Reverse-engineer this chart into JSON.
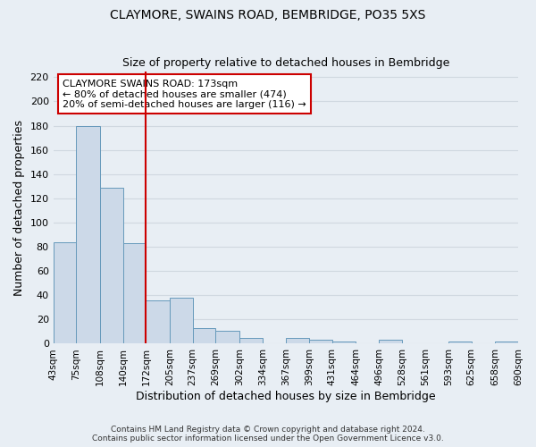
{
  "title": "CLAYMORE, SWAINS ROAD, BEMBRIDGE, PO35 5XS",
  "subtitle": "Size of property relative to detached houses in Bembridge",
  "xlabel": "Distribution of detached houses by size in Bembridge",
  "ylabel": "Number of detached properties",
  "bar_edges": [
    43,
    75,
    108,
    140,
    172,
    205,
    237,
    269,
    302,
    334,
    367,
    399,
    431,
    464,
    496,
    528,
    561,
    593,
    625,
    658,
    690
  ],
  "bar_heights": [
    84,
    180,
    129,
    83,
    36,
    38,
    13,
    11,
    5,
    0,
    5,
    3,
    2,
    0,
    3,
    0,
    0,
    2,
    0,
    2
  ],
  "bar_color": "#ccd9e8",
  "bar_edge_color": "#6699bb",
  "vline_x": 172,
  "vline_color": "#cc0000",
  "ylim": [
    0,
    225
  ],
  "yticks": [
    0,
    20,
    40,
    60,
    80,
    100,
    120,
    140,
    160,
    180,
    200,
    220
  ],
  "tick_labels": [
    "43sqm",
    "75sqm",
    "108sqm",
    "140sqm",
    "172sqm",
    "205sqm",
    "237sqm",
    "269sqm",
    "302sqm",
    "334sqm",
    "367sqm",
    "399sqm",
    "431sqm",
    "464sqm",
    "496sqm",
    "528sqm",
    "561sqm",
    "593sqm",
    "625sqm",
    "658sqm",
    "690sqm"
  ],
  "annotation_title": "CLAYMORE SWAINS ROAD: 173sqm",
  "annotation_line1": "← 80% of detached houses are smaller (474)",
  "annotation_line2": "20% of semi-detached houses are larger (116) →",
  "annotation_box_color": "#ffffff",
  "annotation_box_edge_color": "#cc0000",
  "footer_line1": "Contains HM Land Registry data © Crown copyright and database right 2024.",
  "footer_line2": "Contains public sector information licensed under the Open Government Licence v3.0.",
  "background_color": "#e8eef4",
  "grid_color": "#d0d8e0",
  "plot_bg_color": "#e8eef4"
}
